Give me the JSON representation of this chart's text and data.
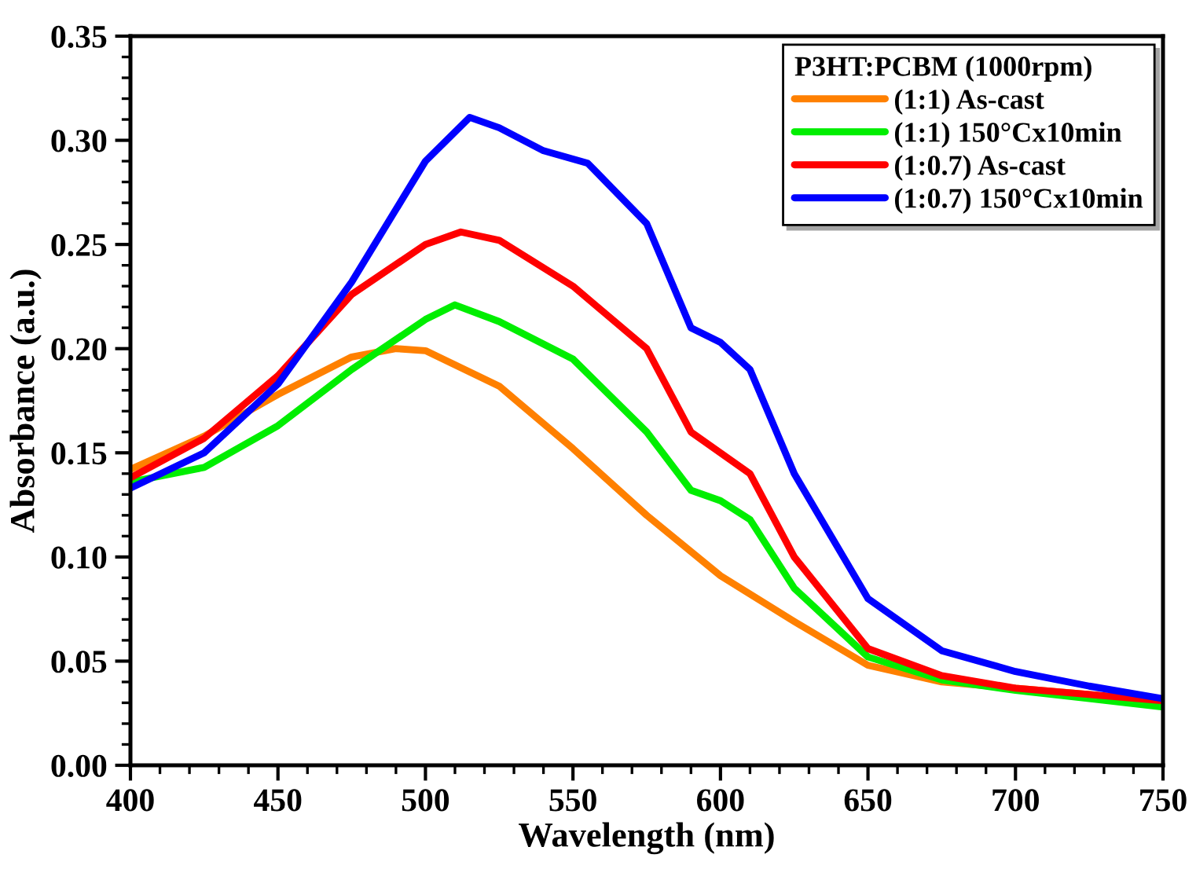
{
  "chart_data": {
    "type": "line",
    "xlabel": "Wavelength (nm)",
    "ylabel": "Absorbance (a.u.)",
    "legend_title": "P3HT:PCBM (1000rpm)",
    "legend": "top right",
    "grid": false,
    "marker": "none",
    "line_style": "solid",
    "xlim": [
      400,
      750
    ],
    "xticks": [
      400,
      450,
      500,
      550,
      600,
      650,
      700,
      750
    ],
    "ylim": [
      0,
      0.35
    ],
    "yticks": [
      {
        "value": 0,
        "label": "0.00"
      },
      {
        "value": 0.05,
        "label": "0.05"
      },
      {
        "value": 0.1,
        "label": "0.10"
      },
      {
        "value": 0.15,
        "label": "0.15"
      },
      {
        "value": 0.2,
        "label": "0.20"
      },
      {
        "value": 0.25,
        "label": "0.25"
      },
      {
        "value": 0.3,
        "label": "0.30"
      },
      {
        "value": 0.35,
        "label": "0.35"
      }
    ],
    "series": [
      {
        "name": "(1:1) As-cast",
        "color": "#ff8000",
        "x": [
          400,
          425,
          450,
          475,
          490,
          500,
          525,
          550,
          575,
          600,
          625,
          650,
          675,
          700,
          725,
          750
        ],
        "values": [
          0.142,
          0.158,
          0.178,
          0.196,
          0.2,
          0.199,
          0.182,
          0.152,
          0.12,
          0.091,
          0.069,
          0.048,
          0.04,
          0.037,
          0.034,
          0.03
        ]
      },
      {
        "name": "(1:1) 150°Cx10min",
        "color": "#00ee00",
        "x": [
          400,
          425,
          450,
          475,
          500,
          510,
          525,
          550,
          575,
          590,
          600,
          610,
          625,
          650,
          675,
          700,
          725,
          750
        ],
        "values": [
          0.136,
          0.143,
          0.163,
          0.19,
          0.214,
          0.221,
          0.213,
          0.195,
          0.16,
          0.132,
          0.127,
          0.118,
          0.085,
          0.052,
          0.041,
          0.036,
          0.032,
          0.028
        ]
      },
      {
        "name": "(1:0.7) As-cast",
        "color": "#ff0000",
        "x": [
          400,
          425,
          450,
          475,
          500,
          512,
          525,
          550,
          575,
          590,
          600,
          610,
          625,
          650,
          675,
          700,
          725,
          750
        ],
        "values": [
          0.138,
          0.157,
          0.187,
          0.226,
          0.25,
          0.256,
          0.252,
          0.23,
          0.2,
          0.16,
          0.15,
          0.14,
          0.1,
          0.056,
          0.043,
          0.037,
          0.034,
          0.031
        ]
      },
      {
        "name": "(1:0.7) 150°Cx10min",
        "color": "#0000ff",
        "x": [
          400,
          425,
          450,
          475,
          500,
          515,
          525,
          540,
          555,
          575,
          590,
          600,
          610,
          625,
          650,
          675,
          700,
          725,
          750
        ],
        "values": [
          0.133,
          0.15,
          0.183,
          0.232,
          0.29,
          0.311,
          0.306,
          0.295,
          0.289,
          0.26,
          0.21,
          0.203,
          0.19,
          0.14,
          0.08,
          0.055,
          0.045,
          0.038,
          0.032
        ]
      }
    ]
  }
}
